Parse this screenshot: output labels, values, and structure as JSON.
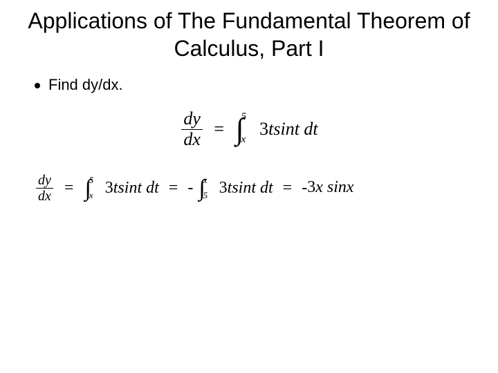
{
  "title": "Applications of The Fundamental Theorem of Calculus, Part I",
  "prompt": "Find dy/dx.",
  "main_equation": {
    "lhs_num": "dy",
    "lhs_den": "dx",
    "upper_limit": "5",
    "lower_limit": "x",
    "integrand": "3tsint dt"
  },
  "solution": {
    "lhs_num": "dy",
    "lhs_den": "dx",
    "step1": {
      "upper": "5",
      "lower": "x",
      "integrand": "3tsint dt"
    },
    "step2": {
      "prefix": "-",
      "upper": "x",
      "lower": "5",
      "integrand": "3tsint dt"
    },
    "result": "-3x sinx"
  },
  "styling": {
    "title_fontsize": 32,
    "prompt_fontsize": 22,
    "main_eq_fontsize": 26,
    "solution_fontsize": 24,
    "text_color": "#000000",
    "background_color": "#ffffff",
    "font_family_title": "Arial",
    "font_family_math": "Cambria Math"
  }
}
